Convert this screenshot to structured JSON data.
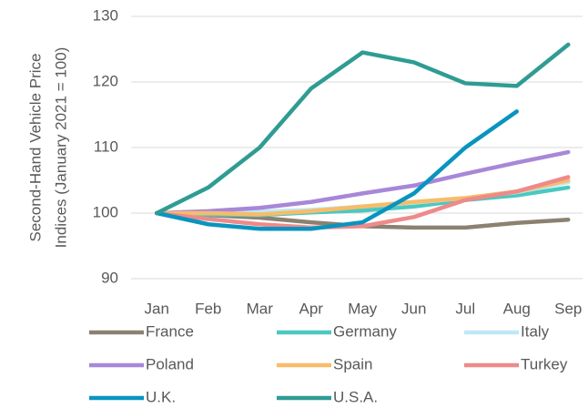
{
  "chart_data": {
    "type": "line",
    "ylabel": [
      "Second-Hand Vehicle Price",
      "Indices (January 2021 = 100)"
    ],
    "categories": [
      "Jan",
      "Feb",
      "Mar",
      "Apr",
      "May",
      "Jun",
      "Jul",
      "Aug",
      "Sep"
    ],
    "series": [
      {
        "name": "France",
        "color": "#8c8171",
        "values": [
          100,
          99.7,
          99.3,
          98.6,
          98.0,
          97.8,
          97.8,
          98.5,
          99.0
        ]
      },
      {
        "name": "Germany",
        "color": "#4bc8c0",
        "values": [
          100,
          99.8,
          99.7,
          100.1,
          100.4,
          101.0,
          102.0,
          102.7,
          103.9
        ]
      },
      {
        "name": "Italy",
        "color": "#bfe8f5",
        "values": [
          100,
          100,
          100.2,
          100.5,
          101.0,
          101.6,
          102.3,
          103.2,
          104.7
        ]
      },
      {
        "name": "Poland",
        "color": "#a887d8",
        "values": [
          100,
          100.3,
          100.8,
          101.7,
          103.0,
          104.2,
          106.0,
          107.7,
          109.3
        ]
      },
      {
        "name": "Spain",
        "color": "#f7bc6a",
        "values": [
          100,
          100,
          99.8,
          100.3,
          101.0,
          101.7,
          102.3,
          103.3,
          105.0
        ]
      },
      {
        "name": "Turkey",
        "color": "#ee8a8a",
        "values": [
          100,
          99.1,
          98.3,
          97.8,
          98.0,
          99.4,
          102.0,
          103.3,
          105.5
        ]
      },
      {
        "name": "U.K.",
        "color": "#0994bf",
        "values": [
          100,
          98.3,
          97.6,
          97.6,
          98.6,
          103.0,
          110.0,
          115.5,
          null
        ]
      },
      {
        "name": "U.S.A.",
        "color": "#2f9c93",
        "values": [
          100,
          103.9,
          110.0,
          119.0,
          124.5,
          123.0,
          119.8,
          119.4,
          125.7
        ]
      }
    ],
    "ylim": [
      90,
      130
    ],
    "yticks": [
      90,
      100,
      110,
      120,
      130
    ],
    "grid": true,
    "legend": "bottom"
  }
}
